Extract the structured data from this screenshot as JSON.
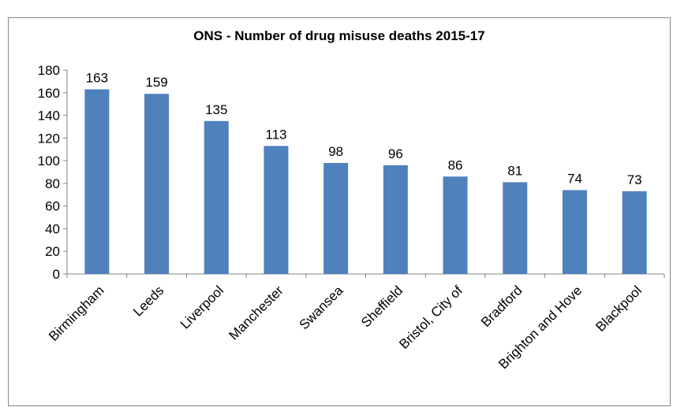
{
  "chart_data": {
    "type": "bar",
    "title": "ONS - Number of drug misuse deaths 2015-17",
    "xlabel": "",
    "ylabel": "",
    "categories": [
      "Birmingham",
      "Leeds",
      "Liverpool",
      "Manchester",
      "Swansea",
      "Sheffield",
      "Bristol, City of",
      "Bradford",
      "Brighton and Hove",
      "Blackpool"
    ],
    "values": [
      163,
      159,
      135,
      113,
      98,
      96,
      86,
      81,
      74,
      73
    ],
    "data_labels": [
      "163",
      "159",
      "135",
      "113",
      "98",
      "96",
      "86",
      "81",
      "74",
      "73"
    ],
    "ylim": [
      0,
      180
    ],
    "yticks": [
      "0",
      "20",
      "40",
      "60",
      "80",
      "100",
      "120",
      "140",
      "160",
      "180"
    ],
    "grid": false,
    "legend": "none",
    "bar_color": "#4f81bd"
  }
}
